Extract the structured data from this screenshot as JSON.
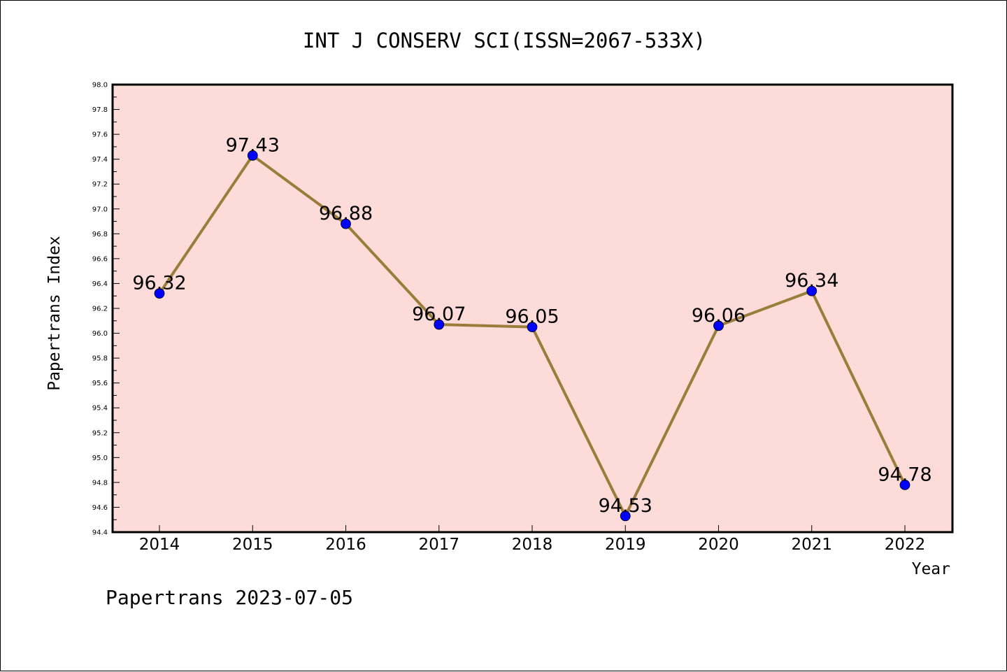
{
  "chart_data": {
    "type": "line",
    "title": "INT J CONSERV SCI(ISSN=2067-533X)",
    "xlabel": "Year",
    "ylabel": "Papertrans Index",
    "categories": [
      "2014",
      "2015",
      "2016",
      "2017",
      "2018",
      "2019",
      "2020",
      "2021",
      "2022"
    ],
    "values": [
      96.32,
      97.43,
      96.88,
      96.07,
      96.05,
      94.53,
      96.06,
      96.34,
      94.78
    ],
    "data_labels": [
      "96.32",
      "97.43",
      "96.88",
      "96.07",
      "96.05",
      "94.53",
      "96.06",
      "96.34",
      "94.78"
    ],
    "ylim": [
      94.4,
      98.0
    ],
    "yticks": [
      "94.4",
      "94.6",
      "94.8",
      "95.0",
      "95.2",
      "95.4",
      "95.6",
      "95.8",
      "96.0",
      "96.2",
      "96.4",
      "96.6",
      "96.8",
      "97.0",
      "97.2",
      "97.4",
      "97.6",
      "97.8",
      "98.0"
    ],
    "grid": false,
    "colors": {
      "plot_background": "#fddbd8",
      "line": "#9a7d3a",
      "marker": "#0000ff"
    }
  },
  "footer": "Papertrans 2023-07-05"
}
